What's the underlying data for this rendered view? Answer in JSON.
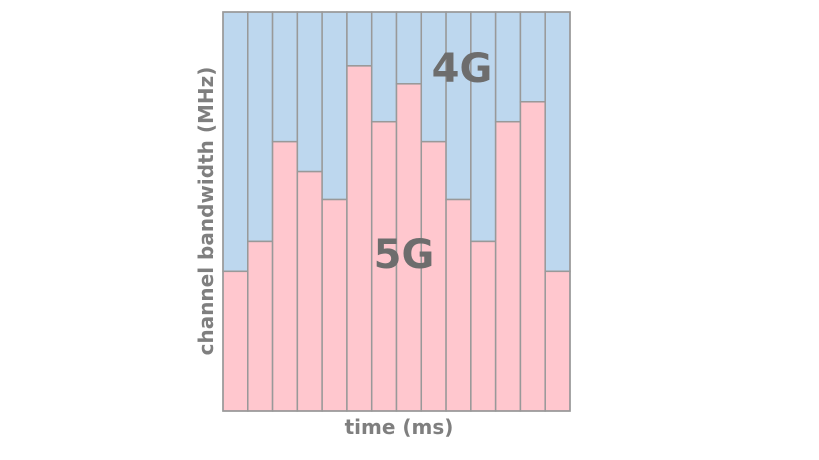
{
  "chart_data": {
    "type": "bar",
    "stacked": true,
    "normalized": true,
    "xlabel": "time (ms)",
    "ylabel": "channel bandwidth (MHz)",
    "categories": [
      "",
      "",
      "",
      "",
      "",
      "",
      "",
      "",
      "",
      "",
      "",
      "",
      "",
      ""
    ],
    "series": [
      {
        "name": "5G",
        "values": [
          0.35,
          0.425,
          0.675,
          0.6,
          0.53,
          0.865,
          0.725,
          0.82,
          0.675,
          0.53,
          0.425,
          0.725,
          0.775,
          0.35
        ]
      },
      {
        "name": "4G",
        "values": [
          0.65,
          0.575,
          0.325,
          0.4,
          0.47,
          0.135,
          0.275,
          0.18,
          0.325,
          0.47,
          0.575,
          0.275,
          0.225,
          0.65
        ]
      }
    ],
    "ylim": [
      0,
      1
    ],
    "grid": false,
    "legend": "none",
    "colors": {
      "5G": "#ffc7ce",
      "4G": "#bdd7ee",
      "border": "#999999"
    }
  }
}
